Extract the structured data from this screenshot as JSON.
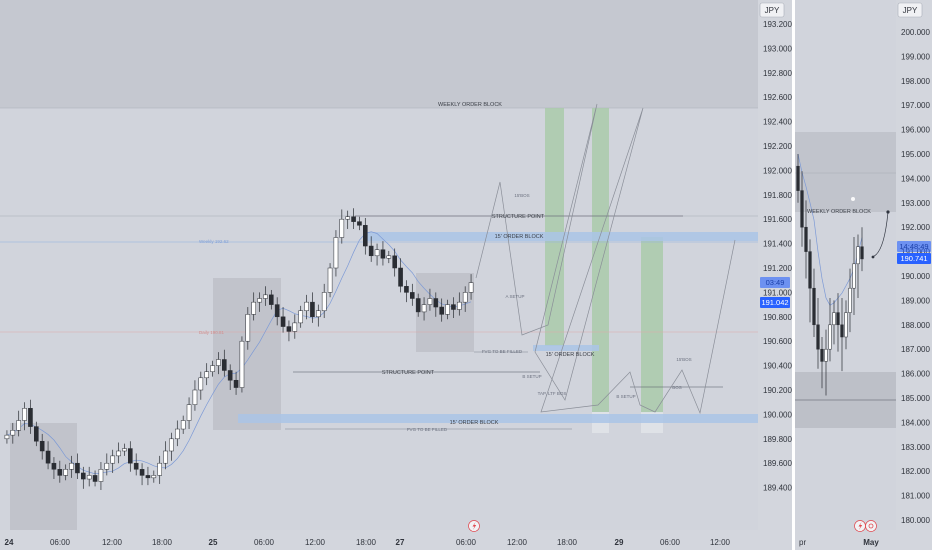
{
  "left_panel": {
    "currency": "JPY",
    "price_ticks": [
      "193.200",
      "193.000",
      "192.800",
      "192.600",
      "192.400",
      "192.200",
      "192.000",
      "191.800",
      "191.600",
      "191.400",
      "191.200",
      "191.000",
      "190.800",
      "190.600",
      "190.400",
      "190.200",
      "190.000",
      "189.800",
      "189.600",
      "189.400"
    ],
    "price_badges": [
      {
        "label": "03:49",
        "color": "#2962ff"
      },
      {
        "label": "191.042",
        "color": "#2962ff"
      }
    ],
    "time_ticks": [
      {
        "label": "24",
        "bold": true
      },
      {
        "label": "06:00"
      },
      {
        "label": "12:00"
      },
      {
        "label": "18:00"
      },
      {
        "label": "25",
        "bold": true
      },
      {
        "label": "06:00"
      },
      {
        "label": "12:00"
      },
      {
        "label": "18:00"
      },
      {
        "label": "27",
        "bold": true
      },
      {
        "label": "06:00"
      },
      {
        "label": "12:00"
      },
      {
        "label": "18:00"
      },
      {
        "label": "29",
        "bold": true
      },
      {
        "label": "06:00"
      },
      {
        "label": "12:00"
      }
    ],
    "annotations": {
      "weekly_order_block": "WEEKLY ORDER BLOCK",
      "structure_point_top": "STRUCTURE POINT",
      "structure_point_mid": "STRUCTURE POINT",
      "order_block_15_top": "15' ORDER BLOCK",
      "order_block_15_mid": "15' ORDER BLOCK",
      "order_block_15_bottom": "15' ORDER BLOCK",
      "bos_15_a": "15'BOS",
      "bos_15_b": "15'BOS",
      "bos": "BOS",
      "a_setup": "A SETUP",
      "b_setup_1": "B SETUP",
      "b_setup_2": "B SETUP",
      "tap_ltf_bos": "TAP, LTF BOS",
      "fvg_1": "FVG TO BE FILLED",
      "fvg_2": "FVG TO BE FILLED",
      "weekly_label": "Weekly 192.62",
      "daily_label": "Daily 190.81"
    },
    "footer_icon": "lightning-icon"
  },
  "right_panel": {
    "currency": "JPY",
    "price_ticks": [
      "200.000",
      "199.000",
      "198.000",
      "197.000",
      "196.000",
      "195.000",
      "194.000",
      "193.000",
      "192.000",
      "191.000",
      "190.000",
      "189.000",
      "188.000",
      "187.000",
      "186.000",
      "185.000",
      "184.000",
      "183.000",
      "182.000",
      "181.000",
      "180.000"
    ],
    "price_badges": [
      {
        "label": "14:48:49",
        "color": "#2962ff"
      },
      {
        "label": "190.741",
        "color": "#2962ff"
      }
    ],
    "time_ticks": [
      {
        "label": "pr"
      },
      {
        "label": "May",
        "bold": true
      }
    ],
    "annotations": {
      "weekly_order_block": "WEEKLY ORDER BLOCK"
    },
    "footer_icons": [
      "lightning-icon",
      "replay-icon"
    ]
  },
  "chart_data": [
    {
      "type": "candlestick",
      "title": "",
      "ylabel": "JPY",
      "ylim": [
        189.3,
        193.3
      ],
      "xlabel": "",
      "x_ticks": [
        "24",
        "06:00",
        "12:00",
        "18:00",
        "25",
        "06:00",
        "12:00",
        "18:00",
        "27",
        "06:00",
        "12:00",
        "18:00",
        "29",
        "06:00",
        "12:00"
      ],
      "key_levels": {
        "weekly_order_block_bottom": 192.52,
        "structure_point_top": 191.7,
        "order_block_top": [
          191.56,
          191.62
        ],
        "structure_point_mid": 190.66,
        "order_block_mid": [
          190.72,
          190.76
        ],
        "order_block_bottom": [
          190.14,
          190.2
        ],
        "daily_line": 190.81,
        "last_price": 191.042
      },
      "series_closes": [
        189.83,
        189.87,
        189.95,
        190.05,
        189.9,
        189.78,
        189.7,
        189.6,
        189.55,
        189.5,
        189.55,
        189.6,
        189.52,
        189.47,
        189.5,
        189.45,
        189.55,
        189.6,
        189.66,
        189.7,
        189.72,
        189.6,
        189.55,
        189.5,
        189.48,
        189.5,
        189.6,
        189.7,
        189.8,
        189.88,
        189.95,
        190.08,
        190.2,
        190.3,
        190.35,
        190.4,
        190.45,
        190.36,
        190.28,
        190.22,
        190.6,
        190.82,
        190.92,
        190.95,
        190.98,
        190.9,
        190.8,
        190.72,
        190.68,
        190.75,
        190.85,
        190.92,
        190.8,
        190.85,
        191.0,
        191.2,
        191.45,
        191.6,
        191.62,
        191.58,
        191.55,
        191.38,
        191.3,
        191.35,
        191.28,
        191.3,
        191.2,
        191.05,
        191.0,
        190.95,
        190.84,
        190.9,
        190.95,
        190.88,
        190.82,
        190.9,
        190.86,
        190.92,
        191.0,
        191.08
      ]
    },
    {
      "type": "candlestick",
      "title": "",
      "ylabel": "JPY",
      "ylim": [
        179.5,
        200.5
      ],
      "x_ticks": [
        "pr",
        "May"
      ],
      "key_levels": {
        "weekly_order_block_bottom": 192.6,
        "last_price": 190.741
      },
      "series_closes": [
        193.5,
        192.0,
        191.0,
        189.5,
        188.0,
        187.0,
        186.5,
        187.0,
        188.0,
        188.5,
        188.0,
        187.5,
        188.5,
        189.5,
        190.5,
        191.2,
        190.7
      ]
    }
  ]
}
